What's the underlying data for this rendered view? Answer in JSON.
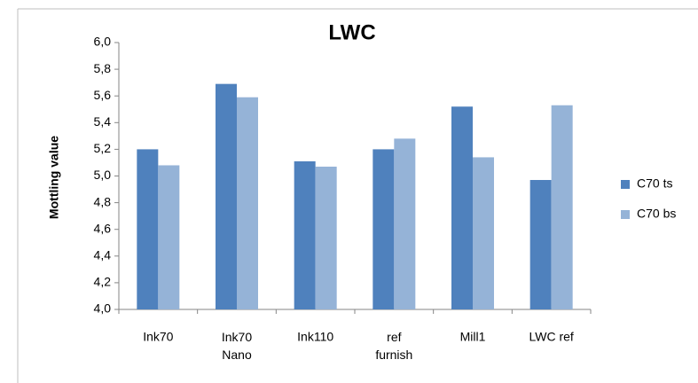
{
  "chart_data": {
    "type": "bar",
    "title": "LWC",
    "ylabel": "Mottling value",
    "categories": [
      "Ink70",
      "Ink70\nNano",
      "Ink110",
      "ref\nfurnish",
      "Mill1",
      "LWC ref"
    ],
    "series": [
      {
        "name": "C70 ts",
        "color": "#4f81bd",
        "values": [
          5.2,
          5.69,
          5.11,
          5.2,
          5.52,
          4.97
        ]
      },
      {
        "name": "C70 bs",
        "color": "#95b3d7",
        "values": [
          5.08,
          5.59,
          5.07,
          5.28,
          5.14,
          5.53
        ]
      }
    ],
    "ylim": [
      4.0,
      6.0
    ],
    "yticks": [
      {
        "value": 4.0,
        "label": "4,0"
      },
      {
        "value": 4.2,
        "label": "4,2"
      },
      {
        "value": 4.4,
        "label": "4,4"
      },
      {
        "value": 4.6,
        "label": "4,6"
      },
      {
        "value": 4.8,
        "label": "4,8"
      },
      {
        "value": 5.0,
        "label": "5,0"
      },
      {
        "value": 5.2,
        "label": "5,2"
      },
      {
        "value": 5.4,
        "label": "5,4"
      },
      {
        "value": 5.6,
        "label": "5,6"
      },
      {
        "value": 5.8,
        "label": "5,8"
      },
      {
        "value": 6.0,
        "label": "6,0"
      }
    ],
    "grid": false,
    "legend": "right"
  }
}
